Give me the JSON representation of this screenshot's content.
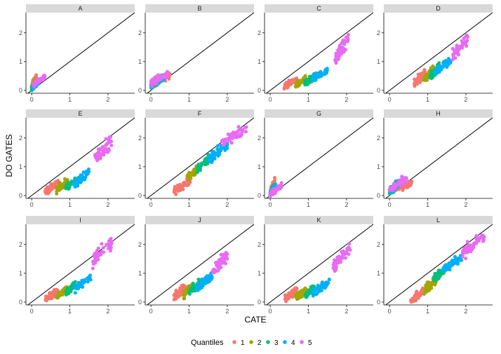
{
  "chart_data": {
    "type": "scatter",
    "xlabel": "CATE",
    "ylabel": "DO GATES",
    "xlim": [
      -0.15,
      2.7
    ],
    "ylim": [
      -0.1,
      2.7
    ],
    "x_ticks": [
      "0",
      "1",
      "2"
    ],
    "y_ticks": [
      "0",
      "1",
      "2"
    ],
    "reference_line": "y = x",
    "grid": false,
    "legend": {
      "title": "Quantiles",
      "position": "bottom",
      "entries": [
        "1",
        "2",
        "3",
        "4",
        "5"
      ],
      "colors": [
        "#F8766D",
        "#A3A500",
        "#00BF7D",
        "#00B0F6",
        "#E76BF3"
      ]
    },
    "panels": [
      {
        "label": "A",
        "groups": [
          {
            "quantile": "1",
            "x_range": [
              0.0,
              0.12
            ],
            "y_center": 0.3,
            "y_spread": 0.35
          },
          {
            "quantile": "2",
            "x_range": [
              0.0,
              0.1
            ],
            "y_center": 0.2,
            "y_spread": 0.25
          },
          {
            "quantile": "3",
            "x_range": [
              0.0,
              0.1
            ],
            "y_center": 0.15,
            "y_spread": 0.2
          },
          {
            "quantile": "4",
            "x_range": [
              0.02,
              0.18
            ],
            "y_center": 0.2,
            "y_spread": 0.25
          },
          {
            "quantile": "5",
            "x_range": [
              0.05,
              0.35
            ],
            "y_center": 0.35,
            "y_spread": 0.3
          }
        ]
      },
      {
        "label": "B",
        "groups": [
          {
            "quantile": "1",
            "x_range": [
              0.0,
              0.5
            ],
            "y_center": 0.4,
            "y_spread": 0.4
          },
          {
            "quantile": "2",
            "x_range": [
              0.0,
              0.35
            ],
            "y_center": 0.3,
            "y_spread": 0.35
          },
          {
            "quantile": "3",
            "x_range": [
              0.0,
              0.3
            ],
            "y_center": 0.3,
            "y_spread": 0.3
          },
          {
            "quantile": "4",
            "x_range": [
              0.0,
              0.35
            ],
            "y_center": 0.3,
            "y_spread": 0.35
          },
          {
            "quantile": "5",
            "x_range": [
              0.0,
              0.45
            ],
            "y_center": 0.4,
            "y_spread": 0.4
          }
        ]
      },
      {
        "label": "C",
        "groups": [
          {
            "quantile": "1",
            "x_range": [
              0.35,
              0.7
            ],
            "y_center": 0.25,
            "y_spread": 0.3
          },
          {
            "quantile": "2",
            "x_range": [
              0.65,
              0.95
            ],
            "y_center": 0.3,
            "y_spread": 0.3
          },
          {
            "quantile": "3",
            "x_range": [
              0.9,
              1.15
            ],
            "y_center": 0.35,
            "y_spread": 0.3
          },
          {
            "quantile": "4",
            "x_range": [
              1.1,
              1.5
            ],
            "y_center": 0.55,
            "y_spread": 0.35
          },
          {
            "quantile": "5",
            "x_range": [
              1.7,
              2.05
            ],
            "y_center": 1.45,
            "y_spread": 0.7
          }
        ]
      },
      {
        "label": "D",
        "groups": [
          {
            "quantile": "1",
            "x_range": [
              0.65,
              0.95
            ],
            "y_center": 0.45,
            "y_spread": 0.45
          },
          {
            "quantile": "2",
            "x_range": [
              0.9,
              1.15
            ],
            "y_center": 0.55,
            "y_spread": 0.45
          },
          {
            "quantile": "3",
            "x_range": [
              1.05,
              1.3
            ],
            "y_center": 0.65,
            "y_spread": 0.45
          },
          {
            "quantile": "4",
            "x_range": [
              1.2,
              1.6
            ],
            "y_center": 0.85,
            "y_spread": 0.45
          },
          {
            "quantile": "5",
            "x_range": [
              1.65,
              2.05
            ],
            "y_center": 1.5,
            "y_spread": 0.7
          }
        ]
      },
      {
        "label": "E",
        "groups": [
          {
            "quantile": "1",
            "x_range": [
              0.35,
              0.7
            ],
            "y_center": 0.3,
            "y_spread": 0.35
          },
          {
            "quantile": "2",
            "x_range": [
              0.65,
              0.95
            ],
            "y_center": 0.35,
            "y_spread": 0.35
          },
          {
            "quantile": "3",
            "x_range": [
              0.9,
              1.15
            ],
            "y_center": 0.4,
            "y_spread": 0.3
          },
          {
            "quantile": "4",
            "x_range": [
              1.1,
              1.5
            ],
            "y_center": 0.6,
            "y_spread": 0.45
          },
          {
            "quantile": "5",
            "x_range": [
              1.65,
              2.1
            ],
            "y_center": 1.6,
            "y_spread": 0.7
          }
        ]
      },
      {
        "label": "F",
        "groups": [
          {
            "quantile": "1",
            "x_range": [
              0.6,
              1.05
            ],
            "y_center": 0.35,
            "y_spread": 0.5
          },
          {
            "quantile": "2",
            "x_range": [
              0.95,
              1.3
            ],
            "y_center": 0.8,
            "y_spread": 0.45
          },
          {
            "quantile": "3",
            "x_range": [
              1.2,
              1.55
            ],
            "y_center": 1.1,
            "y_spread": 0.45
          },
          {
            "quantile": "4",
            "x_range": [
              1.5,
              2.0
            ],
            "y_center": 1.5,
            "y_spread": 0.5
          },
          {
            "quantile": "5",
            "x_range": [
              1.85,
              2.5
            ],
            "y_center": 2.05,
            "y_spread": 0.55
          }
        ]
      },
      {
        "label": "G",
        "groups": [
          {
            "quantile": "1",
            "x_range": [
              0.0,
              0.12
            ],
            "y_center": 0.3,
            "y_spread": 0.45
          },
          {
            "quantile": "2",
            "x_range": [
              0.0,
              0.1
            ],
            "y_center": 0.2,
            "y_spread": 0.3
          },
          {
            "quantile": "3",
            "x_range": [
              0.0,
              0.1
            ],
            "y_center": 0.2,
            "y_spread": 0.3
          },
          {
            "quantile": "4",
            "x_range": [
              0.0,
              0.15
            ],
            "y_center": 0.2,
            "y_spread": 0.3
          },
          {
            "quantile": "5",
            "x_range": [
              0.0,
              0.3
            ],
            "y_center": 0.2,
            "y_spread": 0.3
          }
        ]
      },
      {
        "label": "H",
        "groups": [
          {
            "quantile": "1",
            "x_range": [
              0.0,
              0.6
            ],
            "y_center": 0.3,
            "y_spread": 0.4
          },
          {
            "quantile": "2",
            "x_range": [
              0.0,
              0.3
            ],
            "y_center": 0.3,
            "y_spread": 0.35
          },
          {
            "quantile": "3",
            "x_range": [
              0.0,
              0.25
            ],
            "y_center": 0.3,
            "y_spread": 0.35
          },
          {
            "quantile": "4",
            "x_range": [
              0.0,
              0.3
            ],
            "y_center": 0.3,
            "y_spread": 0.35
          },
          {
            "quantile": "5",
            "x_range": [
              0.0,
              0.45
            ],
            "y_center": 0.4,
            "y_spread": 0.4
          }
        ]
      },
      {
        "label": "I",
        "groups": [
          {
            "quantile": "1",
            "x_range": [
              0.35,
              0.7
            ],
            "y_center": 0.25,
            "y_spread": 0.35
          },
          {
            "quantile": "2",
            "x_range": [
              0.65,
              0.95
            ],
            "y_center": 0.35,
            "y_spread": 0.35
          },
          {
            "quantile": "3",
            "x_range": [
              0.9,
              1.15
            ],
            "y_center": 0.45,
            "y_spread": 0.35
          },
          {
            "quantile": "4",
            "x_range": [
              1.1,
              1.55
            ],
            "y_center": 0.65,
            "y_spread": 0.45
          },
          {
            "quantile": "5",
            "x_range": [
              1.6,
              2.1
            ],
            "y_center": 1.75,
            "y_spread": 0.75
          }
        ]
      },
      {
        "label": "J",
        "groups": [
          {
            "quantile": "1",
            "x_range": [
              0.6,
              0.9
            ],
            "y_center": 0.35,
            "y_spread": 0.45
          },
          {
            "quantile": "2",
            "x_range": [
              0.85,
              1.1
            ],
            "y_center": 0.4,
            "y_spread": 0.4
          },
          {
            "quantile": "3",
            "x_range": [
              1.0,
              1.3
            ],
            "y_center": 0.5,
            "y_spread": 0.4
          },
          {
            "quantile": "4",
            "x_range": [
              1.2,
              1.6
            ],
            "y_center": 0.7,
            "y_spread": 0.45
          },
          {
            "quantile": "5",
            "x_range": [
              1.6,
              2.0
            ],
            "y_center": 1.35,
            "y_spread": 0.7
          }
        ]
      },
      {
        "label": "K",
        "groups": [
          {
            "quantile": "1",
            "x_range": [
              0.35,
              0.7
            ],
            "y_center": 0.25,
            "y_spread": 0.35
          },
          {
            "quantile": "2",
            "x_range": [
              0.65,
              0.95
            ],
            "y_center": 0.3,
            "y_spread": 0.35
          },
          {
            "quantile": "3",
            "x_range": [
              0.9,
              1.15
            ],
            "y_center": 0.35,
            "y_spread": 0.35
          },
          {
            "quantile": "4",
            "x_range": [
              1.1,
              1.55
            ],
            "y_center": 0.5,
            "y_spread": 0.45
          },
          {
            "quantile": "5",
            "x_range": [
              1.65,
              2.1
            ],
            "y_center": 1.55,
            "y_spread": 0.75
          }
        ]
      },
      {
        "label": "L",
        "groups": [
          {
            "quantile": "1",
            "x_range": [
              0.55,
              0.95
            ],
            "y_center": 0.25,
            "y_spread": 0.4
          },
          {
            "quantile": "2",
            "x_range": [
              0.9,
              1.25
            ],
            "y_center": 0.6,
            "y_spread": 0.45
          },
          {
            "quantile": "3",
            "x_range": [
              1.15,
              1.5
            ],
            "y_center": 1.0,
            "y_spread": 0.45
          },
          {
            "quantile": "4",
            "x_range": [
              1.4,
              1.9
            ],
            "y_center": 1.35,
            "y_spread": 0.5
          },
          {
            "quantile": "5",
            "x_range": [
              1.9,
              2.5
            ],
            "y_center": 2.0,
            "y_spread": 0.65
          }
        ]
      }
    ]
  }
}
